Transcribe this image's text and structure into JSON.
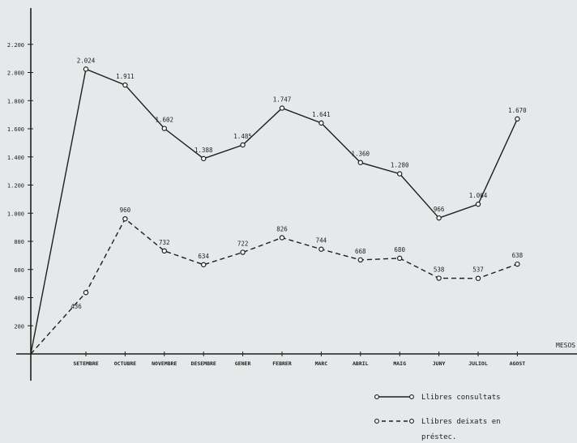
{
  "chart_data": {
    "type": "line",
    "title": "",
    "xlabel": "MESOS",
    "ylabel": "",
    "categories": [
      "SETEMBRE",
      "OCTUBRE",
      "NOVEMBRE",
      "DESEMBRE",
      "GENER",
      "FEBRER",
      "MARC",
      "ABRIL",
      "MAIG",
      "JUNY",
      "JULIOL",
      "AGOST"
    ],
    "y_tick_labels": [
      "200",
      "400",
      "600",
      "800",
      "1.000",
      "1.200",
      "1.400",
      "1.600",
      "1.800",
      "2.000",
      "2.200"
    ],
    "y_tick_values": [
      200,
      400,
      600,
      800,
      1000,
      1200,
      1400,
      1600,
      1800,
      2000,
      2200
    ],
    "ylim": [
      0,
      2400
    ],
    "origin_value": 0,
    "series": [
      {
        "name": "Llibres consultats",
        "style": "solid",
        "values": [
          2024,
          1911,
          1602,
          1388,
          1485,
          1747,
          1641,
          1360,
          1280,
          966,
          1064,
          1670
        ],
        "labels": [
          "2.024",
          "1.911",
          "1.602",
          "1.388",
          "1.485",
          "1.747",
          "1.641",
          "1.360",
          "1.280",
          "966",
          "1.064",
          "1.670"
        ]
      },
      {
        "name": "Llibres deixats en préstec.",
        "style": "dashed",
        "values": [
          436,
          960,
          732,
          634,
          722,
          826,
          744,
          668,
          680,
          538,
          537,
          638
        ],
        "labels": [
          "436",
          "960",
          "732",
          "634",
          "722",
          "826",
          "744",
          "668",
          "680",
          "538",
          "537",
          "638"
        ]
      }
    ],
    "legend_position": "bottom-right",
    "grid": false,
    "colors": {
      "ink": "#1e1e1e",
      "paper": "#e6e9ea"
    }
  }
}
